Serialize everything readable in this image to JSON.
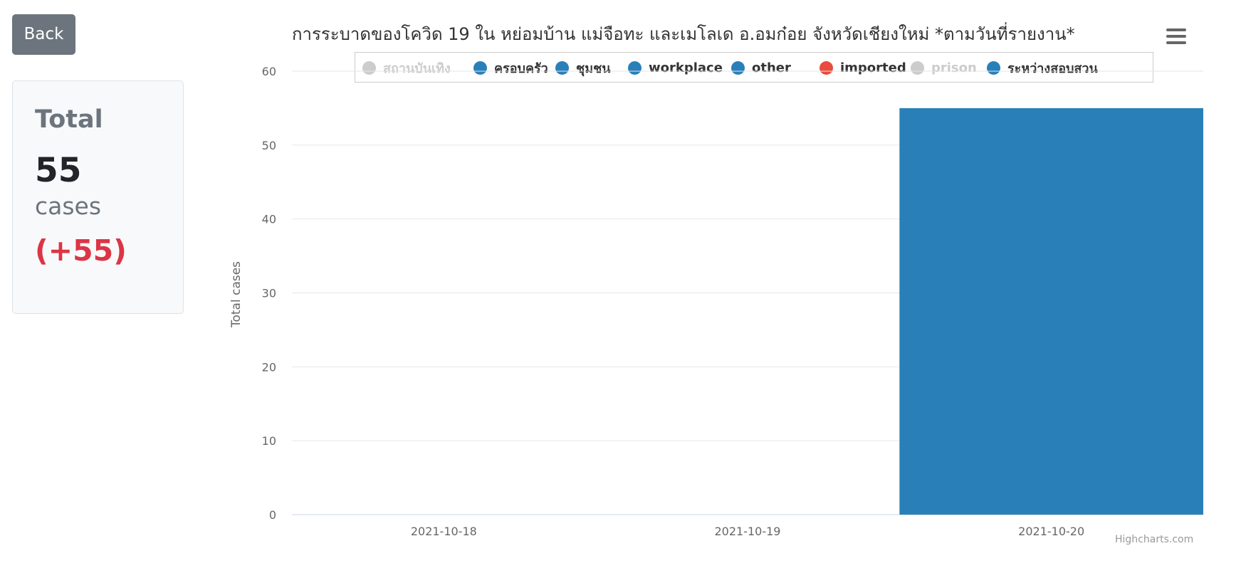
{
  "back_button": {
    "label": "Back"
  },
  "summary": {
    "label": "Total",
    "value": "55",
    "unit": "cases",
    "delta": "(+55)"
  },
  "chart_data": {
    "type": "bar",
    "title": "การระบาดของโควิด 19 ใน หย่อมบ้าน แม่จือทะ และเมโลเด อ.อมก๋อย จังหวัดเชียงใหม่ *ตามวันที่รายงาน*",
    "xlabel": "",
    "ylabel": "Total cases",
    "categories": [
      "2021-10-18",
      "2021-10-19",
      "2021-10-20"
    ],
    "ylim": [
      0,
      60
    ],
    "yticks": [
      0,
      10,
      20,
      30,
      40,
      50,
      60
    ],
    "grid": true,
    "stacked": true,
    "legend_position": "top",
    "series": [
      {
        "name": "สถานบันเทิง",
        "color": "#cccccc",
        "visible": false,
        "values": [
          0,
          0,
          0
        ]
      },
      {
        "name": "ครอบครัว",
        "color": "#2980b9",
        "visible": true,
        "values": [
          0,
          0,
          0
        ]
      },
      {
        "name": "ชุมชน",
        "color": "#2980b9",
        "visible": true,
        "values": [
          0,
          0,
          0
        ]
      },
      {
        "name": "workplace",
        "color": "#2980b9",
        "visible": true,
        "values": [
          0,
          0,
          0
        ]
      },
      {
        "name": "other",
        "color": "#2980b9",
        "visible": true,
        "values": [
          0,
          0,
          0
        ]
      },
      {
        "name": "imported",
        "color": "#e74c3c",
        "visible": true,
        "values": [
          0,
          0,
          0
        ]
      },
      {
        "name": "prison",
        "color": "#cccccc",
        "visible": false,
        "values": [
          0,
          0,
          0
        ]
      },
      {
        "name": "ระหว่างสอบสวน",
        "color": "#2980b9",
        "visible": true,
        "values": [
          0,
          0,
          55
        ]
      }
    ],
    "credits": "Highcharts.com"
  },
  "colors": {
    "bar": "#2980b9",
    "imported": "#e74c3c",
    "hidden_series": "#cccccc",
    "delta": "#dc3545",
    "back_button": "#6c757d"
  },
  "icons": {
    "menu": "hamburger-menu-icon"
  }
}
